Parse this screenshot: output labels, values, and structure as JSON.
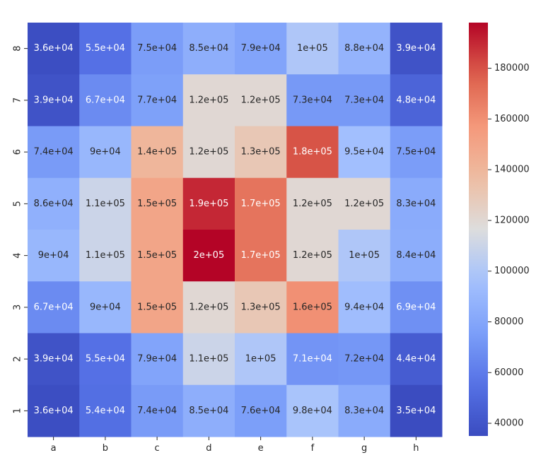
{
  "chart_data": {
    "type": "heatmap",
    "title": "",
    "xlabel": "",
    "ylabel": "",
    "x_categories": [
      "a",
      "b",
      "c",
      "d",
      "e",
      "f",
      "g",
      "h"
    ],
    "y_categories_top_to_bottom": [
      "8",
      "7",
      "6",
      "5",
      "4",
      "3",
      "2",
      "1"
    ],
    "values_top_to_bottom": [
      [
        36000,
        55000,
        75000,
        85000,
        79000,
        100000,
        88000,
        39000
      ],
      [
        39000,
        67000,
        77000,
        120000,
        120000,
        73000,
        73000,
        48000
      ],
      [
        74000,
        90000,
        140000,
        120000,
        130000,
        180000,
        95000,
        75000
      ],
      [
        86000,
        110000,
        150000,
        190000,
        170000,
        120000,
        120000,
        83000
      ],
      [
        90000,
        110000,
        150000,
        200000,
        170000,
        120000,
        100000,
        84000
      ],
      [
        67000,
        90000,
        150000,
        120000,
        130000,
        160000,
        94000,
        69000
      ],
      [
        39000,
        55000,
        79000,
        110000,
        100000,
        71000,
        72000,
        44000
      ],
      [
        36000,
        54000,
        74000,
        85000,
        76000,
        98000,
        83000,
        35000
      ]
    ],
    "annotations_top_to_bottom": [
      [
        "3.6e+04",
        "5.5e+04",
        "7.5e+04",
        "8.5e+04",
        "7.9e+04",
        "1e+05",
        "8.8e+04",
        "3.9e+04"
      ],
      [
        "3.9e+04",
        "6.7e+04",
        "7.7e+04",
        "1.2e+05",
        "1.2e+05",
        "7.3e+04",
        "7.3e+04",
        "4.8e+04"
      ],
      [
        "7.4e+04",
        "9e+04",
        "1.4e+05",
        "1.2e+05",
        "1.3e+05",
        "1.8e+05",
        "9.5e+04",
        "7.5e+04"
      ],
      [
        "8.6e+04",
        "1.1e+05",
        "1.5e+05",
        "1.9e+05",
        "1.7e+05",
        "1.2e+05",
        "1.2e+05",
        "8.3e+04"
      ],
      [
        "9e+04",
        "1.1e+05",
        "1.5e+05",
        "2e+05",
        "1.7e+05",
        "1.2e+05",
        "1e+05",
        "8.4e+04"
      ],
      [
        "6.7e+04",
        "9e+04",
        "1.5e+05",
        "1.2e+05",
        "1.3e+05",
        "1.6e+05",
        "9.4e+04",
        "6.9e+04"
      ],
      [
        "3.9e+04",
        "5.5e+04",
        "7.9e+04",
        "1.1e+05",
        "1e+05",
        "7.1e+04",
        "7.2e+04",
        "4.4e+04"
      ],
      [
        "3.6e+04",
        "5.4e+04",
        "7.4e+04",
        "8.5e+04",
        "7.6e+04",
        "9.8e+04",
        "8.3e+04",
        "3.5e+04"
      ]
    ],
    "colorbar": {
      "colormap": "coolwarm",
      "vmin": 35000,
      "vmax": 198000,
      "ticks": [
        40000,
        60000,
        80000,
        100000,
        120000,
        140000,
        160000,
        180000
      ],
      "tick_labels": [
        "40000",
        "60000",
        "80000",
        "100000",
        "120000",
        "140000",
        "160000",
        "180000"
      ]
    },
    "grid": false
  }
}
